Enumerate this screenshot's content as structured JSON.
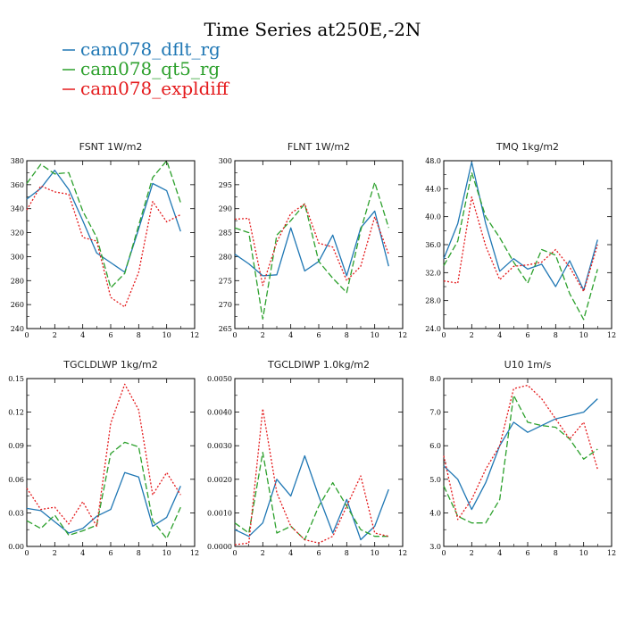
{
  "figure": {
    "title": "Time Series at250E,-2N"
  },
  "colors": {
    "cam078_dflt_rg": "#1f77b4",
    "cam078_qt5_rg": "#2ca02c",
    "cam078_expldiff": "#e41a1c"
  },
  "legend": [
    {
      "name": "cam078_dflt_rg",
      "color": "#1f77b4",
      "dash": "solid"
    },
    {
      "name": "cam078_qt5_rg",
      "color": "#2ca02c",
      "dash": "dashed"
    },
    {
      "name": "cam078_expldiff",
      "color": "#e41a1c",
      "dash": "dotted"
    }
  ],
  "chart_data": [
    {
      "type": "line",
      "title": "FSNT   1W/m2",
      "x": [
        0,
        1,
        2,
        3,
        4,
        5,
        6,
        7,
        8,
        9,
        10,
        11
      ],
      "xlim": [
        0,
        12
      ],
      "xticks": [
        0,
        2,
        4,
        6,
        8,
        10,
        12
      ],
      "ylim": [
        240,
        380
      ],
      "yticks": [
        240,
        260,
        280,
        300,
        320,
        340,
        360,
        380
      ],
      "ytick_labels": [
        "240",
        "260",
        "280",
        "300",
        "320",
        "340",
        "360",
        "380"
      ],
      "series": [
        {
          "name": "cam078_dflt_rg",
          "values": [
            348,
            357,
            372,
            356,
            330,
            303,
            295,
            287,
            323,
            361,
            355,
            321
          ]
        },
        {
          "name": "cam078_qt5_rg",
          "values": [
            361,
            377,
            369,
            370,
            338,
            316,
            274,
            286,
            326,
            366,
            380,
            345
          ]
        },
        {
          "name": "cam078_expldiff",
          "values": [
            339,
            359,
            354,
            352,
            316,
            313,
            266,
            258,
            287,
            346,
            329,
            335
          ]
        }
      ]
    },
    {
      "type": "line",
      "title": "FLNT   1W/m2",
      "x": [
        0,
        1,
        2,
        3,
        4,
        5,
        6,
        7,
        8,
        9,
        10,
        11
      ],
      "xlim": [
        0,
        12
      ],
      "xticks": [
        0,
        2,
        4,
        6,
        8,
        10,
        12
      ],
      "ylim": [
        265,
        300
      ],
      "yticks": [
        265,
        270,
        275,
        280,
        285,
        290,
        295,
        300
      ],
      "ytick_labels": [
        "265",
        "270",
        "275",
        "280",
        "285",
        "290",
        "295",
        "300"
      ],
      "series": [
        {
          "name": "cam078_dflt_rg",
          "values": [
            280.5,
            278.5,
            276,
            276.2,
            286,
            277,
            279,
            284.5,
            276,
            286,
            289.5,
            278
          ]
        },
        {
          "name": "cam078_qt5_rg",
          "values": [
            286,
            285,
            267,
            284.5,
            287.5,
            291,
            279,
            275.5,
            272.5,
            285.5,
            295.5,
            286
          ]
        },
        {
          "name": "cam078_expldiff",
          "values": [
            287.8,
            288,
            274,
            283,
            289,
            291,
            282.8,
            282,
            275,
            278,
            288.3,
            280.5
          ]
        }
      ]
    },
    {
      "type": "line",
      "title": "TMQ   1kg/m2",
      "x": [
        0,
        1,
        2,
        3,
        4,
        5,
        6,
        7,
        8,
        9,
        10,
        11
      ],
      "xlim": [
        0,
        12
      ],
      "xticks": [
        0,
        2,
        4,
        6,
        8,
        10,
        12
      ],
      "ylim": [
        24,
        48
      ],
      "yticks": [
        24,
        28,
        32,
        36,
        40,
        44,
        48
      ],
      "ytick_labels": [
        "24.0",
        "28.0",
        "32.0",
        "36.0",
        "40.0",
        "44.0",
        "48.0"
      ],
      "series": [
        {
          "name": "cam078_dflt_rg",
          "values": [
            34,
            39,
            47.8,
            39,
            32.2,
            34,
            32.5,
            33.2,
            30,
            33.7,
            29.5,
            36.7
          ]
        },
        {
          "name": "cam078_qt5_rg",
          "values": [
            33,
            36.5,
            46.3,
            40,
            37,
            33.5,
            30.5,
            35.3,
            34.5,
            29,
            25.3,
            32.5
          ]
        },
        {
          "name": "cam078_expldiff",
          "values": [
            30.8,
            30.5,
            42.8,
            35.8,
            31,
            32.9,
            33.1,
            33.5,
            35.3,
            32.8,
            29.3,
            36
          ]
        }
      ]
    },
    {
      "type": "line",
      "title": "TGCLDLWP   1kg/m2",
      "x": [
        0,
        1,
        2,
        3,
        4,
        5,
        6,
        7,
        8,
        9,
        10,
        11
      ],
      "xlim": [
        0,
        12
      ],
      "xticks": [
        0,
        2,
        4,
        6,
        8,
        10,
        12
      ],
      "ylim": [
        0,
        0.15
      ],
      "yticks": [
        0,
        0.03,
        0.06,
        0.09,
        0.12,
        0.15
      ],
      "ytick_labels": [
        "0.00",
        "0.03",
        "0.06",
        "0.09",
        "0.12",
        "0.15"
      ],
      "series": [
        {
          "name": "cam078_dflt_rg",
          "values": [
            0.034,
            0.032,
            0.022,
            0.012,
            0.016,
            0.027,
            0.033,
            0.066,
            0.062,
            0.018,
            0.026,
            0.054
          ]
        },
        {
          "name": "cam078_qt5_rg",
          "values": [
            0.023,
            0.016,
            0.028,
            0.01,
            0.014,
            0.019,
            0.083,
            0.093,
            0.089,
            0.023,
            0.007,
            0.035
          ]
        },
        {
          "name": "cam078_expldiff",
          "values": [
            0.052,
            0.033,
            0.035,
            0.02,
            0.04,
            0.018,
            0.11,
            0.145,
            0.122,
            0.046,
            0.066,
            0.046
          ]
        }
      ]
    },
    {
      "type": "line",
      "title": "TGCLDIWP   1.0kg/m2",
      "x": [
        0,
        1,
        2,
        3,
        4,
        5,
        6,
        7,
        8,
        9,
        10,
        11
      ],
      "xlim": [
        0,
        12
      ],
      "xticks": [
        0,
        2,
        4,
        6,
        8,
        10,
        12
      ],
      "ylim": [
        0,
        0.005
      ],
      "yticks": [
        0,
        0.001,
        0.002,
        0.003,
        0.004,
        0.005
      ],
      "ytick_labels": [
        "0.0000",
        "0.0010",
        "0.0020",
        "0.0030",
        "0.0040",
        "0.0050"
      ],
      "series": [
        {
          "name": "cam078_dflt_rg",
          "values": [
            0.0005,
            0.0003,
            0.0007,
            0.002,
            0.0015,
            0.0027,
            0.0015,
            0.0004,
            0.0014,
            0.0002,
            0.0006,
            0.0017
          ]
        },
        {
          "name": "cam078_qt5_rg",
          "values": [
            0.0007,
            0.0004,
            0.0028,
            0.0004,
            0.0006,
            0.0002,
            0.0012,
            0.0019,
            0.0012,
            0.0005,
            0.0003,
            0.0003
          ]
        },
        {
          "name": "cam078_expldiff",
          "values": [
            5e-05,
            0.0001,
            0.0041,
            0.0016,
            0.0006,
            0.0002,
            0.0001,
            0.0003,
            0.0012,
            0.0021,
            0.0004,
            0.0003
          ]
        }
      ]
    },
    {
      "type": "line",
      "title": "U10   1m/s",
      "x": [
        0,
        1,
        2,
        3,
        4,
        5,
        6,
        7,
        8,
        9,
        10,
        11
      ],
      "xlim": [
        0,
        12
      ],
      "xticks": [
        0,
        2,
        4,
        6,
        8,
        10,
        12
      ],
      "ylim": [
        3,
        8
      ],
      "yticks": [
        3,
        4,
        5,
        6,
        7,
        8
      ],
      "ytick_labels": [
        "3.0",
        "4.0",
        "5.0",
        "6.0",
        "7.0",
        "8.0"
      ],
      "series": [
        {
          "name": "cam078_dflt_rg",
          "values": [
            5.4,
            5.0,
            4.1,
            4.9,
            6.0,
            6.7,
            6.4,
            6.6,
            6.8,
            6.9,
            7.0,
            7.4
          ]
        },
        {
          "name": "cam078_qt5_rg",
          "values": [
            4.8,
            3.9,
            3.7,
            3.7,
            4.4,
            7.5,
            6.7,
            6.6,
            6.55,
            6.2,
            5.6,
            5.9
          ]
        },
        {
          "name": "cam078_expldiff",
          "values": [
            5.7,
            3.8,
            4.4,
            5.3,
            6.0,
            7.7,
            7.8,
            7.4,
            6.8,
            6.2,
            6.7,
            5.3
          ]
        }
      ]
    }
  ]
}
